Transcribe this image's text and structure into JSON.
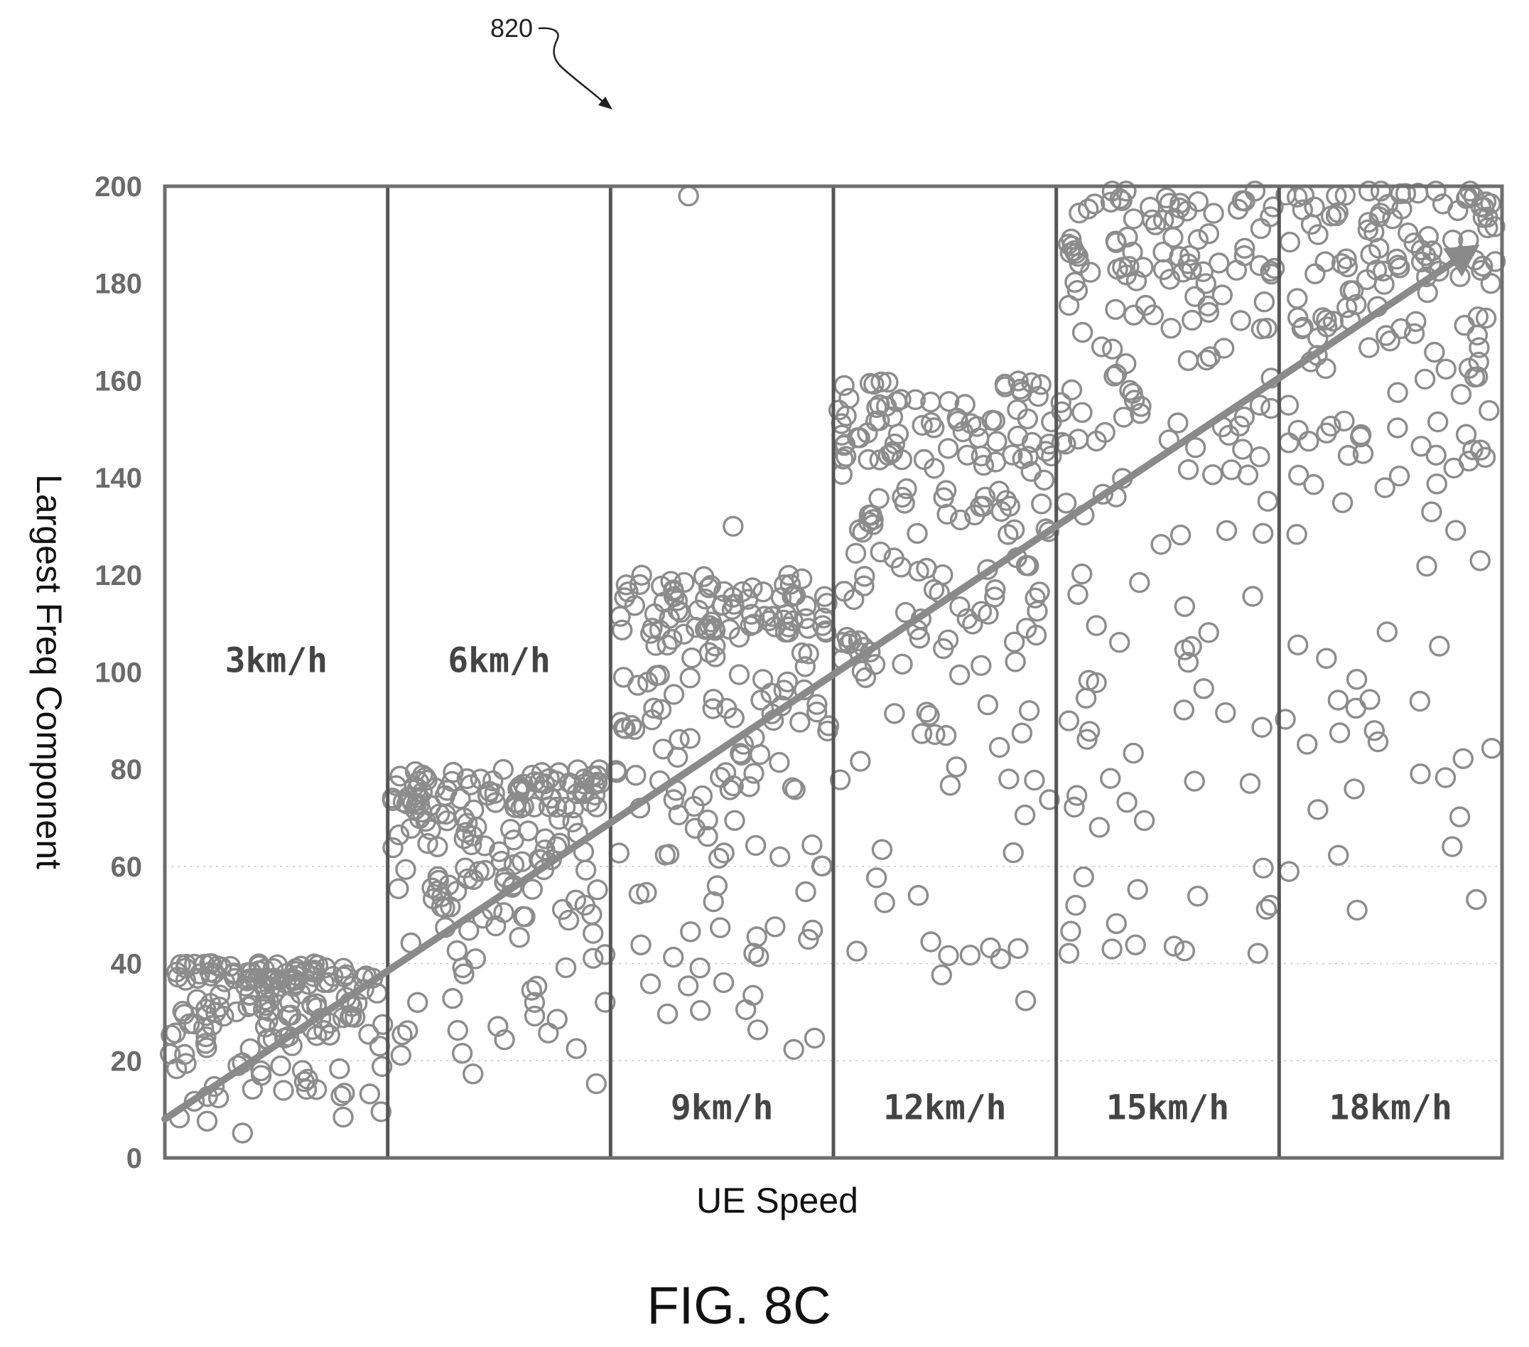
{
  "figure": {
    "ref_numeral": "820",
    "caption": "FIG. 8C"
  },
  "chart_data": {
    "type": "scatter",
    "title": "",
    "xlabel": "UE Speed",
    "ylabel": "Largest Freq Component",
    "ylim": [
      0,
      200
    ],
    "yticks": [
      "0",
      "20",
      "40",
      "60",
      "80",
      "100",
      "120",
      "140",
      "160",
      "180",
      "200"
    ],
    "grid": "horizontal dotted at y = 20, 40, 60",
    "marker": "hollow circle",
    "marker_color": "#8c8c8c",
    "regions": [
      {
        "label": "3km/h",
        "label_y": 100,
        "y_range": [
          5,
          40
        ]
      },
      {
        "label": "6km/h",
        "label_y": 100,
        "y_range": [
          12,
          80
        ]
      },
      {
        "label": "9km/h",
        "label_y": 8,
        "y_range": [
          20,
          120
        ]
      },
      {
        "label": "12km/h",
        "label_y": 8,
        "y_range": [
          30,
          160
        ]
      },
      {
        "label": "15km/h",
        "label_y": 8,
        "y_range": [
          40,
          200
        ]
      },
      {
        "label": "18km/h",
        "label_y": 8,
        "y_range": [
          50,
          200
        ]
      }
    ],
    "trend_arrow": {
      "from": [
        0,
        8
      ],
      "to": [
        5.9,
        188
      ],
      "color": "#8a8a8a"
    },
    "notable_points": [
      {
        "region": 2,
        "y": 198
      },
      {
        "region": 2,
        "y": 130
      },
      {
        "region": 3,
        "y": 41
      },
      {
        "region": 4,
        "y": 43
      },
      {
        "region": 5,
        "y": 51
      }
    ]
  }
}
